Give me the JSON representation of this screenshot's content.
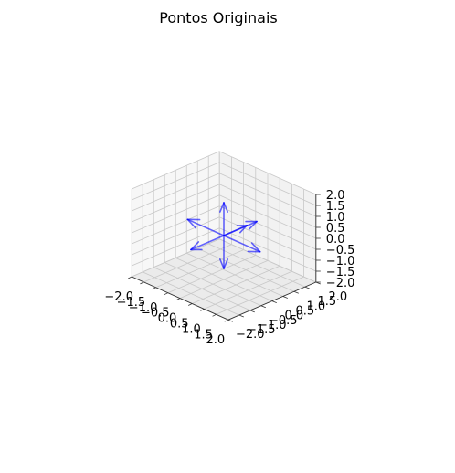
{
  "chart_data": {
    "type": "quiver3d",
    "title": "Pontos Originais",
    "xlabel": "",
    "ylabel": "",
    "zlabel": "",
    "xlim": [
      -2.0,
      2.0
    ],
    "ylim": [
      -2.0,
      2.0
    ],
    "zlim": [
      -2.0,
      2.0
    ],
    "x_ticks": [
      "−2.0",
      "−1.5",
      "−1.0",
      "−0.5",
      "0.0",
      "0.5",
      "1.0",
      "1.5",
      "2.0"
    ],
    "y_ticks": [
      "−2.0",
      "−1.5",
      "−1.0",
      "−0.5",
      "0.0",
      "0.5",
      "1.0",
      "1.5",
      "2.0"
    ],
    "z_ticks": [
      "−2.0",
      "−1.5",
      "−1.0",
      "−0.5",
      "0.0",
      "0.5",
      "1.0",
      "1.5",
      "2.0"
    ],
    "grid": true,
    "arrow_color": "#0000ff",
    "pane_colors": {
      "back": "#f2f2f2",
      "side": "#f7f7f7",
      "floor": "#ebebeb"
    },
    "origin": [
      0,
      0,
      0
    ],
    "vectors": [
      {
        "u": 1.5,
        "v": 0.0,
        "w": 0.0
      },
      {
        "u": -1.5,
        "v": 0.0,
        "w": 0.0
      },
      {
        "u": 0.0,
        "v": 1.5,
        "w": 0.0
      },
      {
        "u": 0.0,
        "v": -1.5,
        "w": 0.0
      },
      {
        "u": 0.0,
        "v": 0.0,
        "w": 1.5
      },
      {
        "u": 0.0,
        "v": 0.0,
        "w": -1.5
      },
      {
        "u": 0.5,
        "v": 0.5,
        "w": 0.5
      }
    ]
  }
}
